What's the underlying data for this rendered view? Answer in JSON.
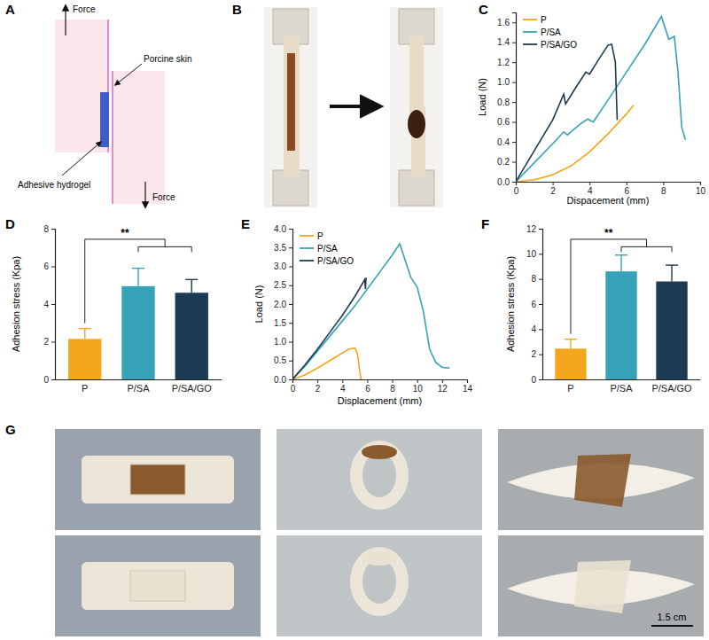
{
  "panel_labels": [
    "A",
    "B",
    "C",
    "D",
    "E",
    "F",
    "G"
  ],
  "diagram": {
    "labels": [
      "Force",
      "Porcine skin",
      "Adhesive hydrogel",
      "Force"
    ]
  },
  "photos": {
    "scale_bar": "1.5 cm"
  },
  "chart_data": [
    {
      "type": "line",
      "x_label": "Dispacement (mm)",
      "y_label": "Load (N)",
      "xlim": [
        0,
        10
      ],
      "xticks": [
        0,
        2,
        4,
        6,
        8,
        10
      ],
      "ylim": [
        0,
        1.7
      ],
      "yticks": [
        {
          "value": 0,
          "label": "0.0"
        },
        0.2,
        0.4,
        0.6,
        0.8,
        {
          "value": 1,
          "label": "1.0"
        },
        1.2,
        1.4,
        1.6
      ],
      "legend": "top-left",
      "series": [
        {
          "name": "P",
          "color": "#f4a71d",
          "x": [
            0,
            1,
            2,
            3,
            4,
            5,
            6,
            6.4
          ],
          "values": [
            0,
            0.02,
            0.07,
            0.16,
            0.3,
            0.48,
            0.68,
            0.77
          ]
        },
        {
          "name": "P/SA",
          "color": "#36a2b8",
          "x": [
            0,
            1,
            2,
            2.6,
            2.8,
            3.5,
            3.9,
            4.2,
            5,
            6,
            7,
            7.9,
            8.3,
            8.6,
            8.8,
            9.0,
            9.2
          ],
          "values": [
            0,
            0.19,
            0.38,
            0.5,
            0.47,
            0.58,
            0.63,
            0.6,
            0.82,
            1.1,
            1.38,
            1.66,
            1.43,
            1.46,
            1.1,
            0.55,
            0.42
          ]
        },
        {
          "name": "P/SA/GO",
          "color": "#1c3a52",
          "x": [
            0,
            1,
            2,
            2.6,
            2.7,
            3.2,
            3.8,
            4,
            4.5,
            5,
            5.2,
            5.4,
            5.5
          ],
          "values": [
            0,
            0.31,
            0.62,
            0.88,
            0.78,
            0.93,
            1.1,
            1.08,
            1.23,
            1.37,
            1.38,
            1.2,
            0.62
          ]
        }
      ]
    },
    {
      "type": "bar",
      "y_label": "Adhesion stress (Kpa)",
      "categories": [
        "P",
        "P/SA",
        "P/SA/GO"
      ],
      "values": [
        2.15,
        4.95,
        4.6
      ],
      "errors": [
        0.55,
        0.95,
        0.7
      ],
      "colors": [
        "#f4a71d",
        "#36a2b8",
        "#1c3a52"
      ],
      "ylim": [
        0,
        8
      ],
      "yticks": [
        0,
        2,
        4,
        6,
        8
      ],
      "annotations": [
        "**"
      ]
    },
    {
      "type": "line",
      "x_label": "Displacement (mm)",
      "y_label": "Load (N)",
      "xlim": [
        0,
        14
      ],
      "xticks": [
        0,
        2,
        4,
        6,
        8,
        10,
        12,
        14
      ],
      "ylim": [
        0,
        4
      ],
      "yticks": [
        {
          "value": 0,
          "label": "0.0"
        },
        0.5,
        {
          "value": 1,
          "label": "1.0"
        },
        1.5,
        {
          "value": 2,
          "label": "2.0"
        },
        2.5,
        {
          "value": 3,
          "label": "3.0"
        },
        3.5,
        {
          "value": 4,
          "label": "4.0"
        }
      ],
      "legend": "top-left",
      "series": [
        {
          "name": "P",
          "color": "#f4a71d",
          "x": [
            0,
            1,
            2,
            3,
            4,
            4.5,
            5,
            5.2,
            5.4,
            5.5
          ],
          "values": [
            0,
            0.12,
            0.3,
            0.5,
            0.7,
            0.8,
            0.83,
            0.7,
            0.2,
            0
          ]
        },
        {
          "name": "P/SA",
          "color": "#36a2b8",
          "x": [
            0,
            1,
            2,
            3,
            4,
            5,
            6,
            7,
            8,
            8.6,
            9,
            9.5,
            10,
            10.5,
            11,
            11.5,
            12,
            12.6
          ],
          "values": [
            0,
            0.35,
            0.75,
            1.15,
            1.55,
            1.95,
            2.4,
            2.85,
            3.3,
            3.6,
            3.2,
            2.7,
            2.45,
            1.8,
            0.8,
            0.45,
            0.32,
            0.3
          ]
        },
        {
          "name": "P/SA/GO",
          "color": "#1c3a52",
          "x": [
            0,
            1,
            2,
            3,
            4,
            5,
            5.8,
            5.85,
            5.9
          ],
          "values": [
            0,
            0.38,
            0.8,
            1.25,
            1.7,
            2.2,
            2.65,
            2.4,
            2.7
          ]
        }
      ]
    },
    {
      "type": "bar",
      "y_label": "Adhesion stress (Kpa)",
      "categories": [
        "P",
        "P/SA",
        "P/SA/GO"
      ],
      "values": [
        2.45,
        8.6,
        7.8
      ],
      "errors": [
        0.75,
        1.3,
        1.3
      ],
      "colors": [
        "#f4a71d",
        "#36a2b8",
        "#1c3a52"
      ],
      "ylim": [
        0,
        12
      ],
      "yticks": [
        0,
        2,
        4,
        6,
        8,
        10,
        12
      ],
      "annotations": [
        "**"
      ]
    }
  ]
}
